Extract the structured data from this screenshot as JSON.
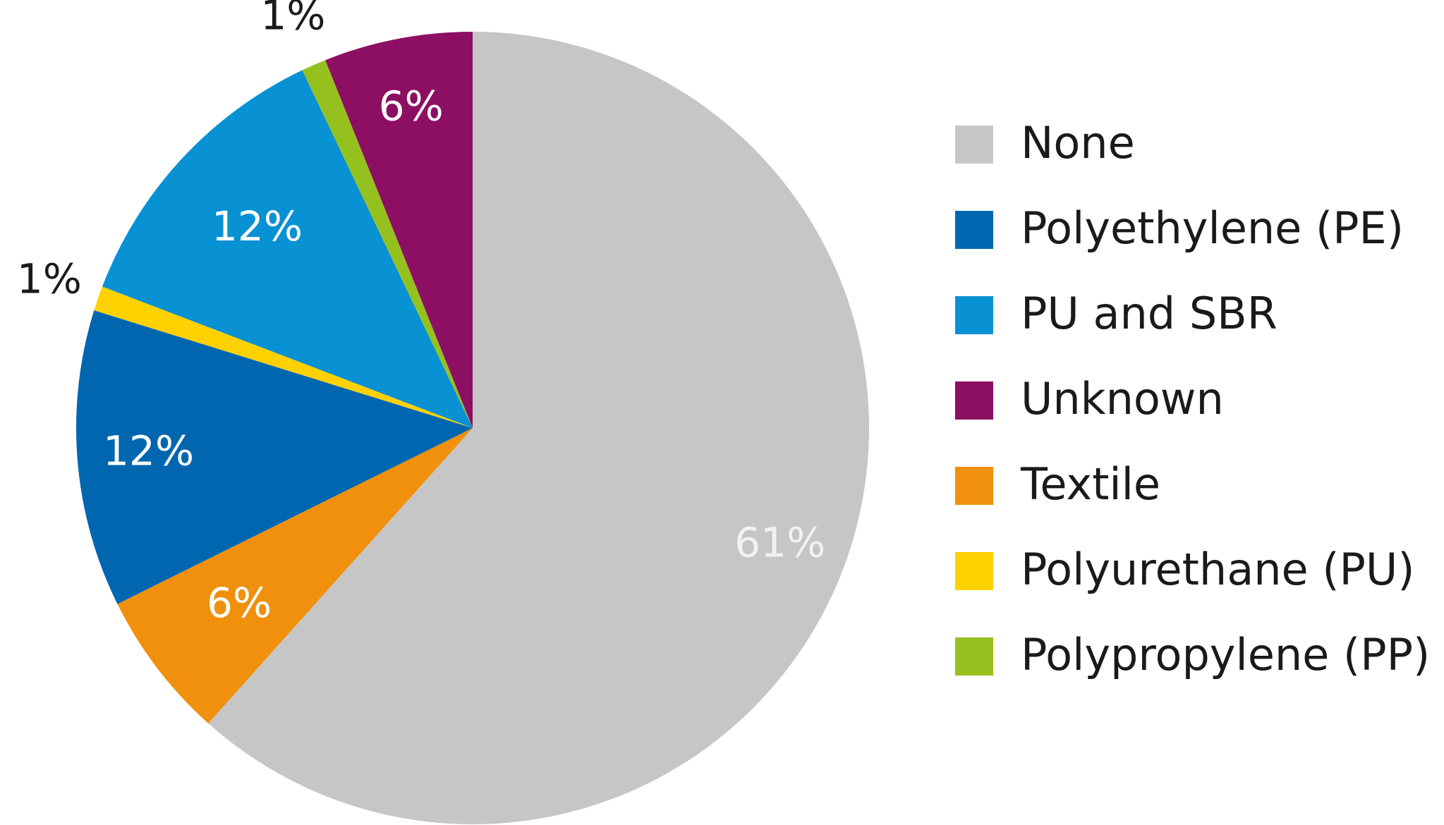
{
  "chart_data": {
    "type": "pie",
    "categories": [
      "None",
      "Polyethylene (PE)",
      "PU and SBR",
      "Unknown",
      "Textile",
      "Polyurethane (PU)",
      "Polypropylene (PP)"
    ],
    "values": [
      61,
      12,
      12,
      6,
      6,
      1,
      1
    ],
    "value_labels": [
      "61%",
      "12%",
      "12%",
      "6%",
      "6%",
      "1%",
      "1%"
    ],
    "colors": [
      "#c6c6c6",
      "#0066b0",
      "#0891d3",
      "#8d0f63",
      "#f0900c",
      "#ffd100",
      "#95c11f"
    ],
    "legend": "right"
  }
}
